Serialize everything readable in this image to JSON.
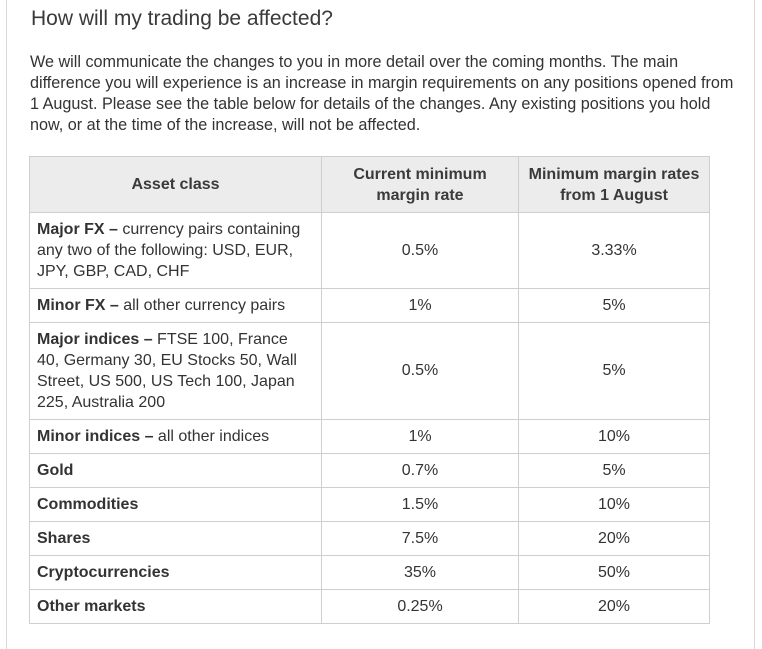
{
  "heading": "How will my trading be affected?",
  "intro": "We will communicate the changes to you in more detail over the coming months. The main difference you will experience is an increase in margin requirements on any positions opened from 1 August. Please see the table below for details of the changes. Any existing positions you hold now, or at the time of the increase, will not be affected.",
  "table": {
    "headers": {
      "asset_class": "Asset class",
      "current": "Current minimum margin rate",
      "new": "Minimum margin rates from 1 August"
    },
    "rows": [
      {
        "name": "Major FX –",
        "detail": " currency pairs containing any two of the following: USD, EUR, JPY, GBP, CAD, CHF",
        "current": "0.5%",
        "new": "3.33%"
      },
      {
        "name": "Minor FX –",
        "detail": " all other currency pairs",
        "current": "1%",
        "new": "5%"
      },
      {
        "name": "Major indices –",
        "detail": " FTSE 100, France 40, Germany 30, EU Stocks 50, Wall Street, US 500, US Tech 100, Japan 225, Australia 200",
        "current": "0.5%",
        "new": "5%"
      },
      {
        "name": "Minor indices –",
        "detail": " all other indices",
        "current": "1%",
        "new": "10%"
      },
      {
        "name": "Gold",
        "detail": "",
        "current": "0.7%",
        "new": "5%"
      },
      {
        "name": "Commodities",
        "detail": "",
        "current": "1.5%",
        "new": "10%"
      },
      {
        "name": "Shares",
        "detail": "",
        "current": "7.5%",
        "new": "20%"
      },
      {
        "name": "Cryptocurrencies",
        "detail": "",
        "current": "35%",
        "new": "50%"
      },
      {
        "name": "Other markets",
        "detail": "",
        "current": "0.25%",
        "new": "20%"
      }
    ]
  }
}
